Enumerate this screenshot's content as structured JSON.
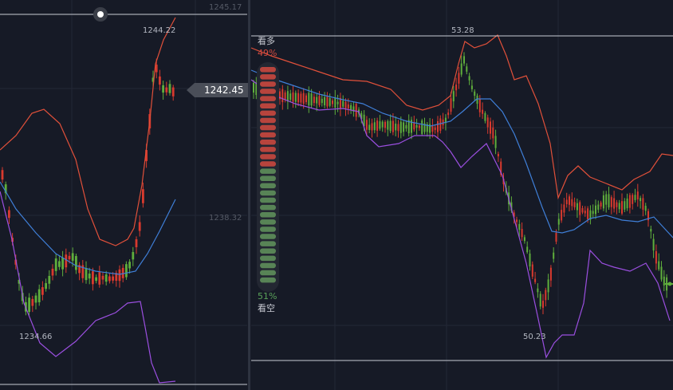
{
  "colors": {
    "background": "#161a26",
    "grid": "#232836",
    "candle_up": "#d93a2e",
    "candle_down": "#5fae3c",
    "band_upper": "#e0503a",
    "band_middle": "#3f7fd8",
    "band_lower": "#9b4fe0",
    "bull": "#d24a40",
    "bear": "#5e8f5a"
  },
  "left_panel": {
    "axis_labels": [
      "1245.17",
      "1238.32"
    ],
    "high_label": "1244.22",
    "low_label": "1234.66",
    "price_tag": "1242.45",
    "handle_icon": "circle-handle-icon"
  },
  "right_panel": {
    "high_label": "53.28",
    "low_label": "50.23"
  },
  "vote": {
    "bull_label": "看多",
    "bull_pct": "49%",
    "bear_label": "看空",
    "bear_pct": "51%",
    "bull_fraction": 0.49
  },
  "chart_data": [
    {
      "type": "candlestick",
      "title": "",
      "ylim": [
        1233.0,
        1246.0
      ],
      "y_ticks": [
        1245.17,
        1238.32
      ],
      "current_price": 1242.45,
      "annotations": {
        "high": 1244.22,
        "low": 1234.66
      },
      "grid": true
    },
    {
      "type": "candlestick",
      "title": "",
      "ylim": [
        49.9,
        53.6
      ],
      "annotations": {
        "high": 53.28,
        "low": 50.23
      },
      "grid": true
    }
  ]
}
